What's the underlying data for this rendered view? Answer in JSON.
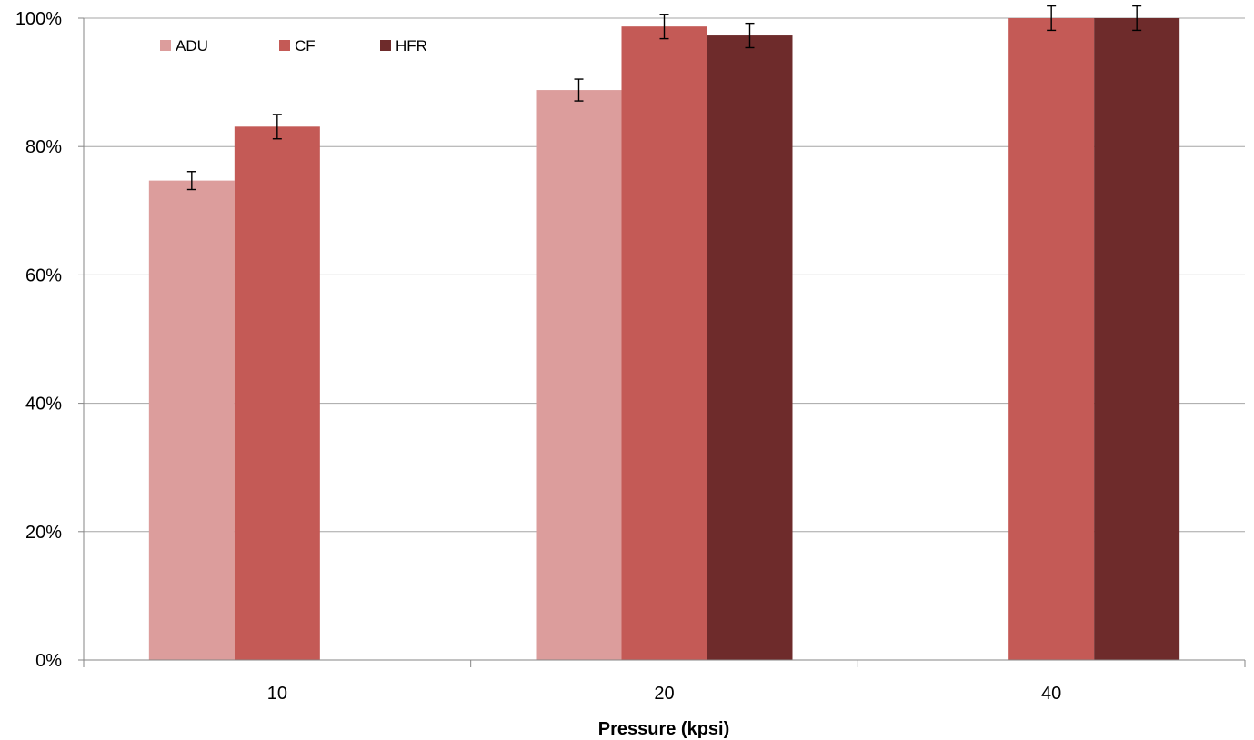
{
  "chart_data": {
    "type": "bar",
    "xlabel": "Pressure (kpsi)",
    "ylabel": "",
    "ylim": [
      0,
      100
    ],
    "y_ticks": [
      "0%",
      "20%",
      "40%",
      "60%",
      "80%",
      "100%"
    ],
    "y_tick_values": [
      0,
      20,
      40,
      60,
      80,
      100
    ],
    "categories": [
      "10",
      "20",
      "40"
    ],
    "grid": true,
    "legend_position": "top-left",
    "series": [
      {
        "name": "ADU",
        "color": "#dc9d9c",
        "values": [
          74.7,
          88.8,
          null
        ],
        "errors": [
          1.4,
          1.7,
          null
        ]
      },
      {
        "name": "CF",
        "color": "#c45a56",
        "values": [
          83.1,
          98.7,
          100
        ],
        "errors": [
          1.9,
          1.9,
          1.9
        ]
      },
      {
        "name": "HFR",
        "color": "#6e2b2b",
        "values": [
          null,
          97.3,
          100
        ],
        "errors": [
          null,
          1.9,
          1.9
        ]
      }
    ]
  }
}
